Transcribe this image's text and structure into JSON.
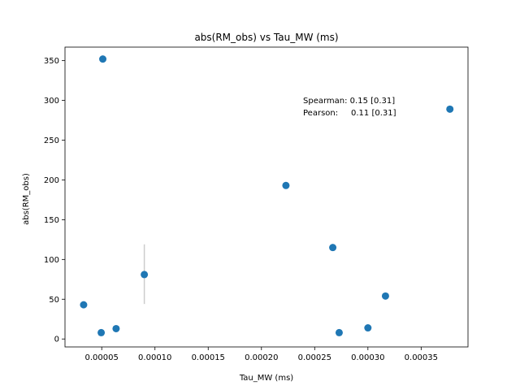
{
  "chart_data": {
    "type": "scatter",
    "title": "abs(RM_obs) vs Tau_MW (ms)",
    "xlabel": "Tau_MW (ms)",
    "ylabel": "abs(RM_obs)",
    "xlim": [
      1.55e-05,
      0.000394
    ],
    "ylim": [
      -10,
      367
    ],
    "x_ticks": [
      5e-05,
      0.0001,
      0.00015,
      0.0002,
      0.00025,
      0.0003,
      0.00035
    ],
    "x_tick_labels": [
      "0.00005",
      "0.00010",
      "0.00015",
      "0.00020",
      "0.00025",
      "0.00030",
      "0.00035"
    ],
    "y_ticks": [
      0,
      50,
      100,
      150,
      200,
      250,
      300,
      350
    ],
    "y_tick_labels": [
      "0",
      "50",
      "100",
      "150",
      "200",
      "250",
      "300",
      "350"
    ],
    "grid": false,
    "marker_color": "#1f77b4",
    "errorbar_color": "#cccccc",
    "points": [
      {
        "x": 3.3e-05,
        "y": 43
      },
      {
        "x": 4.95e-05,
        "y": 8
      },
      {
        "x": 5.1e-05,
        "y": 352
      },
      {
        "x": 6.35e-05,
        "y": 13
      },
      {
        "x": 9e-05,
        "y": 81,
        "yerr": [
          44,
          119
        ]
      },
      {
        "x": 0.000223,
        "y": 193
      },
      {
        "x": 0.000267,
        "y": 115
      },
      {
        "x": 0.000273,
        "y": 8
      },
      {
        "x": 0.0003,
        "y": 14
      },
      {
        "x": 0.0003165,
        "y": 54
      },
      {
        "x": 0.000377,
        "y": 289
      }
    ],
    "annotation": {
      "line1": "Spearman: 0.15 [0.31]",
      "line2": "Pearson:     0.11 [0.31]"
    }
  }
}
